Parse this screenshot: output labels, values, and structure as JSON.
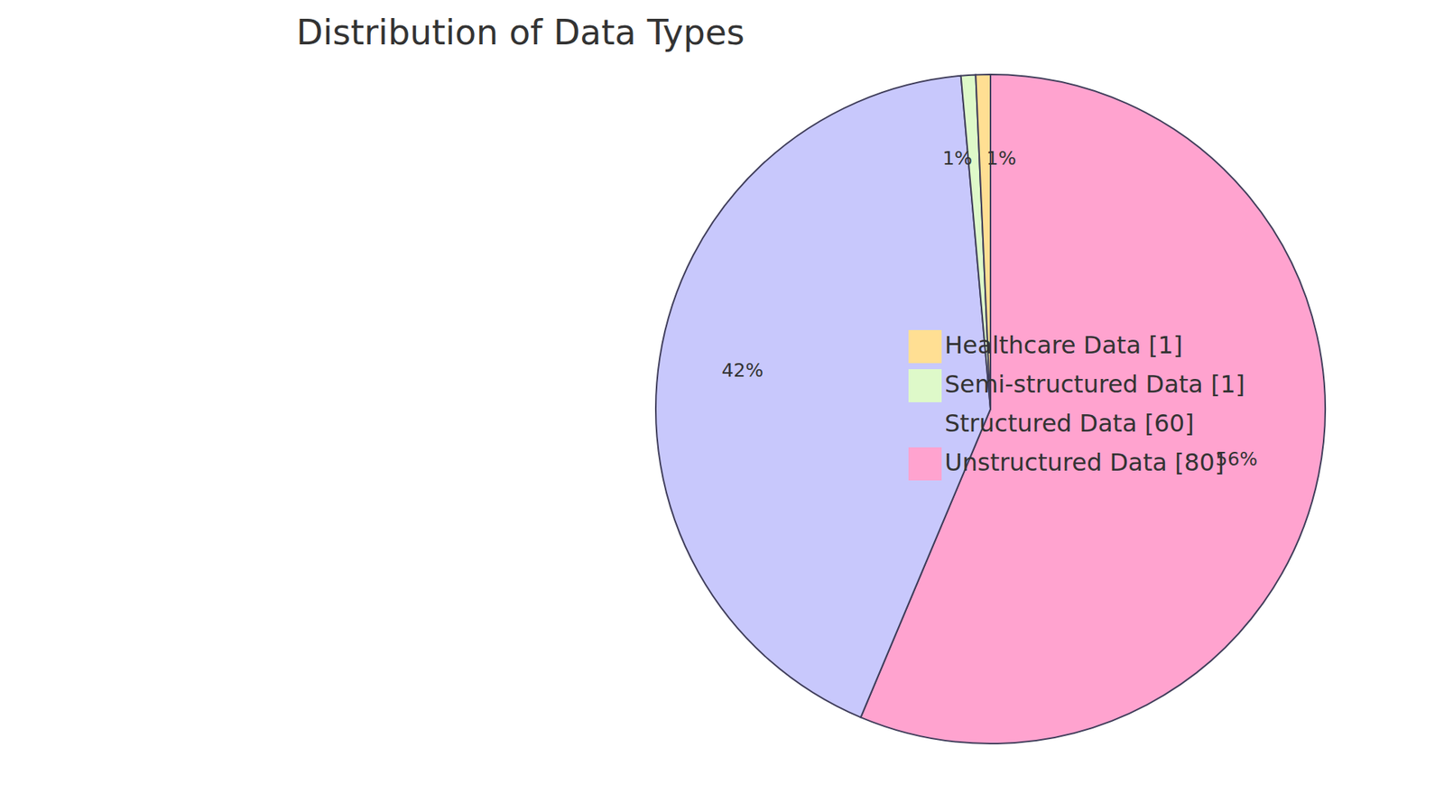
{
  "chart_data": {
    "type": "pie",
    "title": "Distribution of Data Types",
    "categories": [
      "Unstructured Data [80]",
      "Structured Data [60]",
      "Semi-structured Data [1]",
      "Healthcare Data [1]"
    ],
    "values": [
      80,
      60,
      1,
      1
    ],
    "value_labels": [
      "56%",
      "42%",
      "1%",
      "1%"
    ],
    "colors": [
      "#ffa3cf",
      "#c8c8fc",
      "#def9c9",
      "#ffdf93"
    ],
    "data_labels": true,
    "legend": "right"
  }
}
